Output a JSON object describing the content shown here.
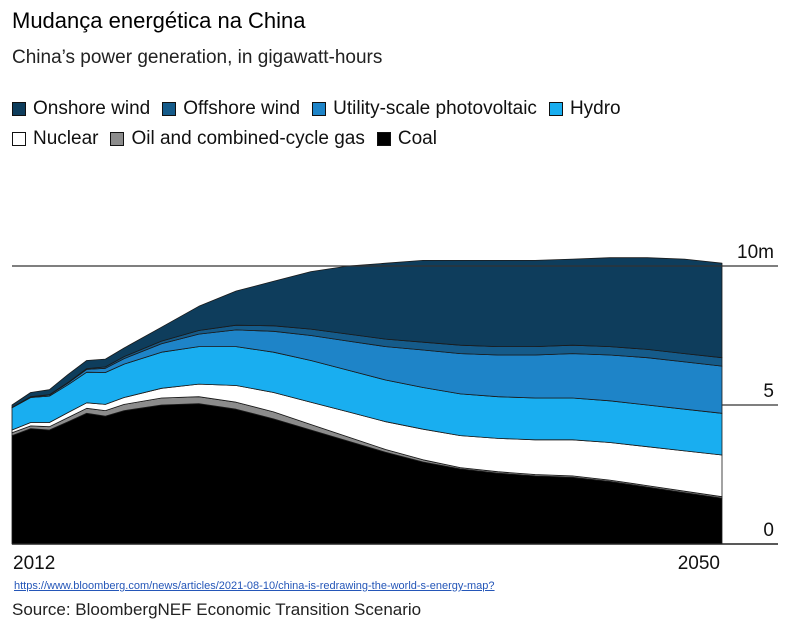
{
  "header": {
    "title": "Mudança energética na China",
    "subtitle": "China’s power generation, in gigawatt-hours"
  },
  "legend": {
    "rows": [
      [
        {
          "label": "Onshore wind",
          "color": "#0e3d5c"
        },
        {
          "label": "Offshore wind",
          "color": "#155b8a"
        },
        {
          "label": "Utility-scale photovoltaic",
          "color": "#1e84c8"
        },
        {
          "label": "Hydro",
          "color": "#19aef0"
        }
      ],
      [
        {
          "label": "Nuclear",
          "color": "#ffffff"
        },
        {
          "label": "Oil and combined-cycle gas",
          "color": "#8c8c8c"
        },
        {
          "label": "Coal",
          "color": "#000000"
        }
      ]
    ]
  },
  "footer": {
    "url": "https://www.bloomberg.com/news/articles/2021-08-10/china-is-redrawing-the-world-s-energy-map?",
    "source": "Source: BloombergNEF Economic Transition Scenario"
  },
  "chart_data": {
    "type": "area",
    "stacked": true,
    "xlim": [
      2012,
      2050
    ],
    "ylim": [
      0,
      10
    ],
    "x_tick_labels": [
      "2012",
      "2050"
    ],
    "y_ticks": [
      {
        "value": 0,
        "label": "0"
      },
      {
        "value": 5,
        "label": "5"
      },
      {
        "value": 10,
        "label": "10m"
      }
    ],
    "gridlines": [
      5,
      10
    ],
    "legend_position": "top",
    "x": [
      2012,
      2013,
      2014,
      2015,
      2016,
      2017,
      2018,
      2020,
      2022,
      2024,
      2026,
      2028,
      2030,
      2032,
      2034,
      2036,
      2038,
      2040,
      2042,
      2044,
      2046,
      2048,
      2050
    ],
    "series": [
      {
        "name": "Coal",
        "color": "#000000",
        "values": [
          3.9,
          4.15,
          4.1,
          4.4,
          4.7,
          4.6,
          4.8,
          5.0,
          5.05,
          4.85,
          4.5,
          4.1,
          3.7,
          3.3,
          2.95,
          2.7,
          2.55,
          2.45,
          2.4,
          2.25,
          2.05,
          1.85,
          1.65
        ]
      },
      {
        "name": "Oil and combined-cycle gas",
        "color": "#8c8c8c",
        "values": [
          0.1,
          0.1,
          0.12,
          0.15,
          0.18,
          0.2,
          0.22,
          0.25,
          0.25,
          0.25,
          0.25,
          0.2,
          0.15,
          0.1,
          0.08,
          0.05,
          0.05,
          0.05,
          0.05,
          0.05,
          0.05,
          0.05,
          0.05
        ]
      },
      {
        "name": "Nuclear",
        "color": "#ffffff",
        "values": [
          0.1,
          0.12,
          0.15,
          0.18,
          0.2,
          0.22,
          0.25,
          0.35,
          0.45,
          0.6,
          0.7,
          0.8,
          0.9,
          1.0,
          1.1,
          1.15,
          1.2,
          1.25,
          1.3,
          1.35,
          1.4,
          1.45,
          1.5
        ]
      },
      {
        "name": "Hydro",
        "color": "#19aef0",
        "values": [
          0.8,
          0.9,
          0.95,
          1.0,
          1.1,
          1.15,
          1.2,
          1.3,
          1.35,
          1.4,
          1.45,
          1.5,
          1.5,
          1.5,
          1.5,
          1.5,
          1.5,
          1.5,
          1.5,
          1.5,
          1.5,
          1.5,
          1.5
        ]
      },
      {
        "name": "Utility-scale photovoltaic",
        "color": "#1e84c8",
        "values": [
          0.01,
          0.02,
          0.04,
          0.06,
          0.1,
          0.15,
          0.2,
          0.3,
          0.45,
          0.6,
          0.75,
          0.9,
          1.05,
          1.2,
          1.35,
          1.45,
          1.5,
          1.55,
          1.6,
          1.65,
          1.7,
          1.7,
          1.7
        ]
      },
      {
        "name": "Offshore wind",
        "color": "#155b8a",
        "values": [
          0.0,
          0.01,
          0.01,
          0.02,
          0.03,
          0.05,
          0.07,
          0.1,
          0.13,
          0.17,
          0.2,
          0.23,
          0.25,
          0.27,
          0.28,
          0.3,
          0.3,
          0.3,
          0.3,
          0.3,
          0.3,
          0.3,
          0.3
        ]
      },
      {
        "name": "Onshore wind",
        "color": "#0e3d5c",
        "values": [
          0.09,
          0.15,
          0.18,
          0.29,
          0.29,
          0.28,
          0.31,
          0.5,
          0.87,
          1.23,
          1.6,
          2.07,
          2.45,
          2.73,
          2.94,
          3.05,
          3.1,
          3.1,
          3.1,
          3.2,
          3.3,
          3.4,
          3.4
        ]
      }
    ]
  }
}
